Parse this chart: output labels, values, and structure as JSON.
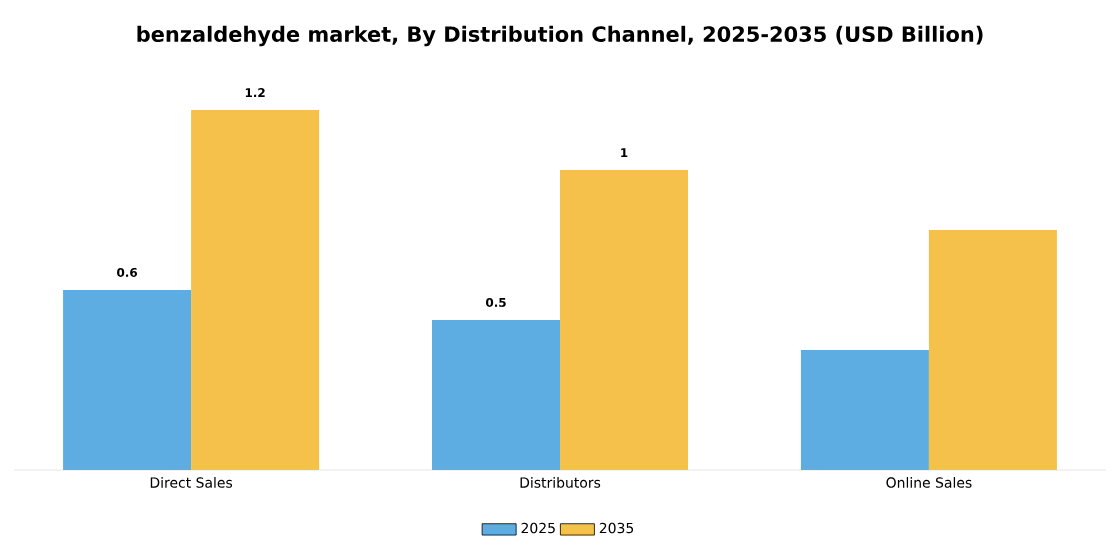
{
  "chart_data": {
    "type": "bar",
    "title": "benzaldehyde market, By Distribution Channel, 2025-2035 (USD Billion)",
    "categories": [
      "Direct Sales",
      "Distributors",
      "Online Sales"
    ],
    "series": [
      {
        "name": "2025",
        "color": "#5dade2",
        "values": [
          0.6,
          0.5,
          0.4
        ],
        "value_labels": [
          "0.6",
          "0.5",
          null
        ]
      },
      {
        "name": "2035",
        "color": "#f5c14b",
        "values": [
          1.2,
          1.0,
          0.8
        ],
        "value_labels": [
          "1.2",
          "1",
          null
        ]
      }
    ],
    "legend": "bottom"
  }
}
